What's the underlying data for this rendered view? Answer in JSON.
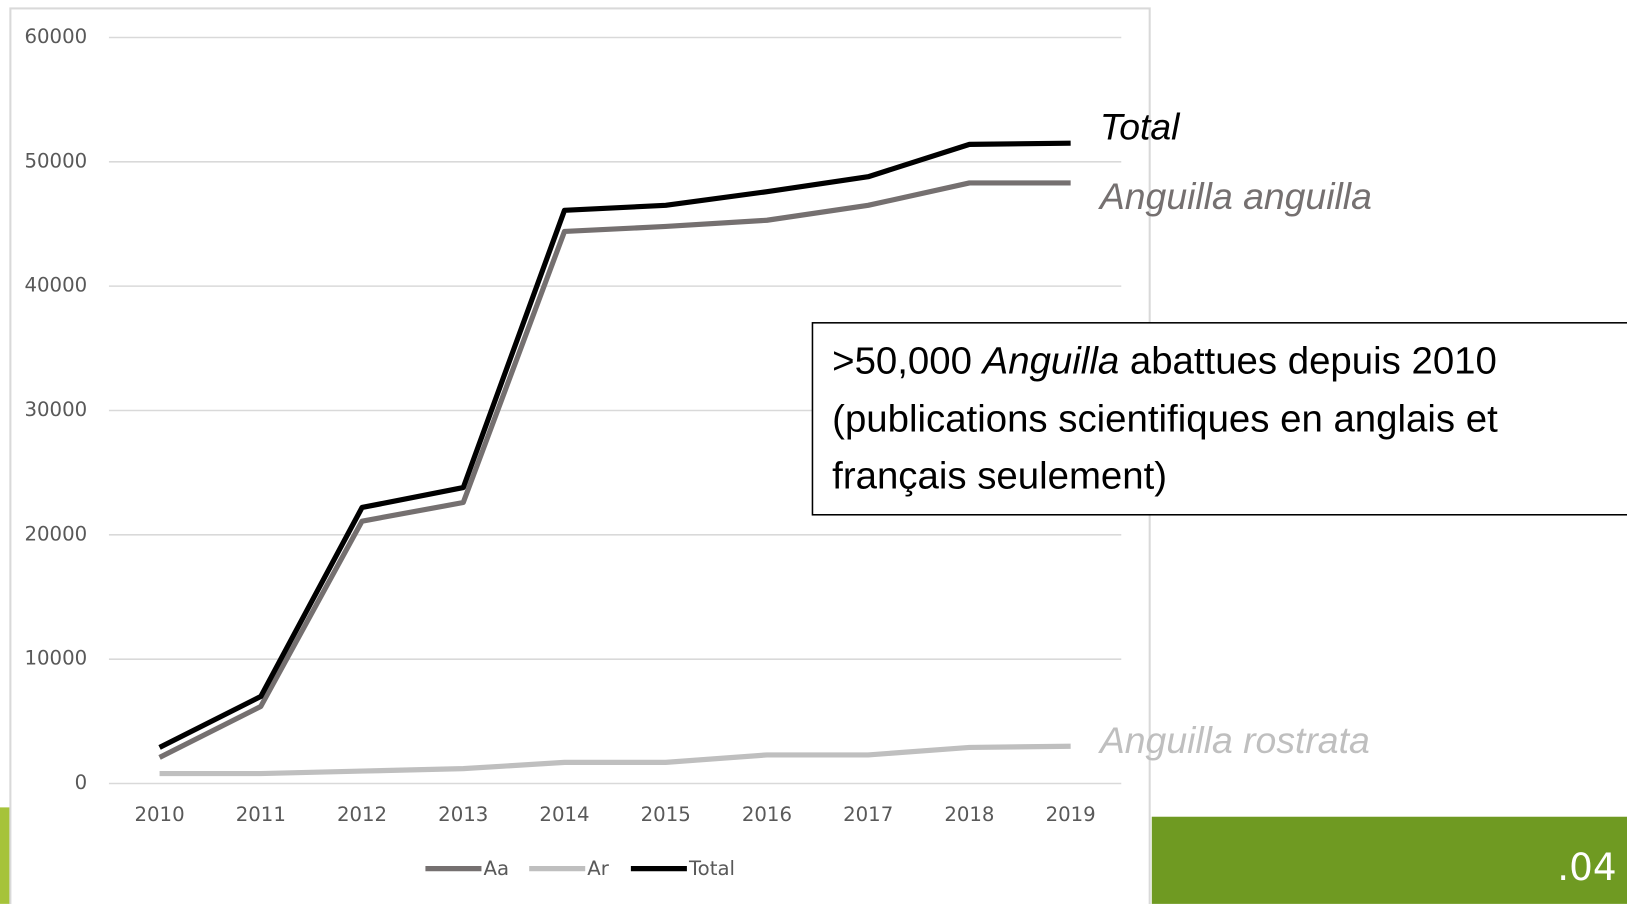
{
  "chart_data": {
    "type": "line",
    "x": [
      2010,
      2011,
      2012,
      2013,
      2014,
      2015,
      2016,
      2017,
      2018,
      2019
    ],
    "xlim": [
      2009.5,
      2019.5
    ],
    "ylim": [
      0,
      60000
    ],
    "yticks": [
      0,
      10000,
      20000,
      30000,
      40000,
      50000,
      60000
    ],
    "grid": true,
    "series": [
      {
        "name": "Aa",
        "color": "#757070",
        "values": [
          2100,
          6200,
          21100,
          22600,
          44400,
          44800,
          45300,
          46500,
          48300,
          48300
        ]
      },
      {
        "name": "Ar",
        "color": "#bfbfbf",
        "values": [
          800,
          800,
          1000,
          1200,
          1700,
          1700,
          2300,
          2300,
          2900,
          3000
        ]
      },
      {
        "name": "Total",
        "color": "#000000",
        "values": [
          2900,
          7000,
          22200,
          23800,
          46100,
          46500,
          47600,
          48800,
          51400,
          51500
        ]
      }
    ],
    "legend": "bottom",
    "annotations": [
      "Total",
      "Anguilla anguilla",
      "Anguilla rostrata"
    ],
    "callout": {
      "line1_start": ">50,000",
      "line1_italic": "Anguilla",
      "line1_end": "abattues depuis 2010",
      "line2": "(publications scientifiques en anglais et",
      "line3": "français seulement)"
    }
  },
  "slide_number": ".04"
}
